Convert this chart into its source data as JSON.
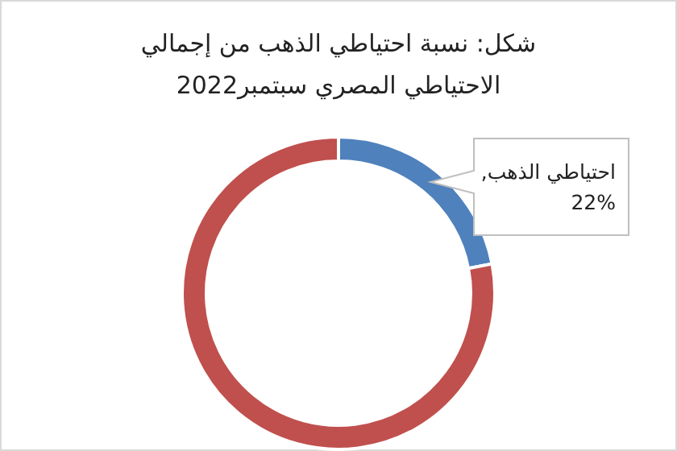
{
  "chart_data": {
    "type": "donut",
    "title": "شكل: نسبة احتياطي الذهب من إجمالي الاحتياطي المصري سبتمبر2022",
    "categories": [
      null,
      null
    ],
    "values": [
      22,
      78
    ],
    "colors": [
      "#4f81bd",
      "#c0504d"
    ],
    "value_labels": [
      "احتياطي الذهب, 22%",
      null
    ]
  }
}
